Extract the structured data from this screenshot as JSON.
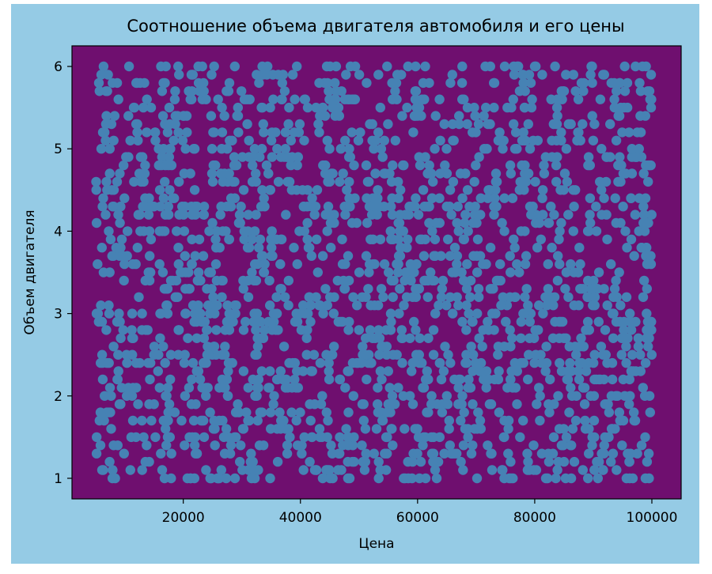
{
  "chart_data": {
    "type": "scatter",
    "title": "Соотношение объема двигателя автомобиля и его цены",
    "xlabel": "Цена",
    "ylabel": "Объем двигателя",
    "xlim": [
      1000,
      105000
    ],
    "ylim": [
      0.75,
      6.25
    ],
    "xticks": [
      20000,
      40000,
      60000,
      80000,
      100000
    ],
    "xtick_labels": [
      "20000",
      "40000",
      "60000",
      "80000",
      "100000"
    ],
    "yticks": [
      1,
      2,
      3,
      4,
      5,
      6
    ],
    "ytick_labels": [
      "1",
      "2",
      "3",
      "4",
      "5",
      "6"
    ],
    "grid": false,
    "legend": "none",
    "figure_background": "#95cbe5",
    "plot_background": "#6f0f6f",
    "marker_color": "#4682b4",
    "marker": "circle",
    "approx_point_count": 2000,
    "x_range_of_points": [
      5000,
      100000
    ],
    "y_range_of_points": [
      1.0,
      6.0
    ],
    "y_step_of_points": 0.1,
    "distribution": "uniform random",
    "series": [
      {
        "x": [
          6000,
          8800,
          12500,
          14300,
          19000,
          25000,
          26500,
          33500,
          35800,
          41200,
          46000,
          53000,
          56800,
          61300,
          65600,
          70500,
          74800,
          82300,
          87500,
          91800,
          95600,
          99000,
          7600,
          11400,
          15800,
          18200,
          23900,
          28800,
          31500,
          36900,
          43900,
          48100,
          52200,
          58700,
          60300,
          64200,
          71700,
          77800,
          84600,
          88300,
          93000,
          97800,
          5200,
          10300,
          16800,
          21400,
          27400,
          30600,
          38500,
          44700,
          49900,
          55800,
          62400,
          67100,
          73300,
          79100,
          85400,
          90200,
          96600,
          9300
        ],
        "y": [
          5.9,
          1.4,
          4.7,
          2.2,
          5.4,
          3.1,
          1.1,
          6.0,
          2.8,
          4.1,
          5.6,
          1.6,
          3.7,
          6.0,
          2.4,
          4.9,
          1.0,
          3.3,
          5.2,
          1.3,
          2.6,
          6.0,
          3.9,
          1.7,
          5.0,
          3.4,
          2.1,
          4.4,
          1.2,
          5.8,
          3.0,
          1.5,
          4.2,
          2.7,
          5.5,
          1.9,
          3.6,
          4.8,
          2.3,
          5.7,
          1.2,
          4.0,
          3.0,
          2.5,
          1.0,
          5.9,
          4.3,
          2.9,
          1.8,
          4.6,
          5.1,
          3.2,
          2.0,
          5.3,
          4.5,
          1.1,
          3.5,
          2.2,
          4.9,
          3.8
        ]
      }
    ]
  }
}
